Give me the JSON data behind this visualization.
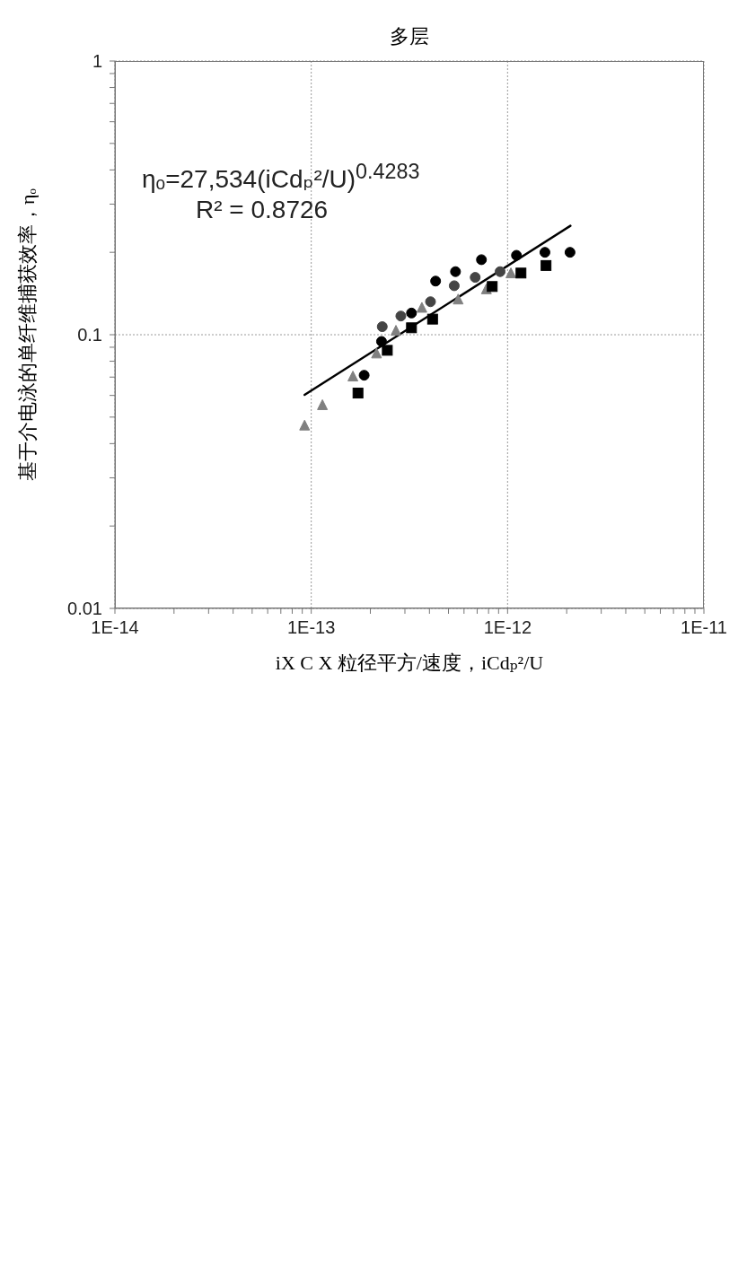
{
  "chart_data": {
    "type": "scatter",
    "title": "多层",
    "xlabel": "iX C X 粒径平方/速度，iCdₚ²/U",
    "ylabel": "基于介电泳的单纤维捕获效率，ηₒ",
    "log": "xy",
    "grid": true,
    "xlim": [
      1e-14,
      1e-11
    ],
    "xticks": [
      {
        "value": 1e-14,
        "label": "1E-14"
      },
      {
        "value": 2e-14,
        "label": null
      },
      {
        "value": 3e-14,
        "label": null
      },
      {
        "value": 4e-14,
        "label": null
      },
      {
        "value": 5e-14,
        "label": null
      },
      {
        "value": 6e-14,
        "label": null
      },
      {
        "value": 7e-14,
        "label": null
      },
      {
        "value": 8e-14,
        "label": null
      },
      {
        "value": 9e-14,
        "label": null
      },
      {
        "value": 1e-13,
        "label": "1E-13"
      },
      {
        "value": 2e-13,
        "label": null
      },
      {
        "value": 3e-13,
        "label": null
      },
      {
        "value": 4e-13,
        "label": null
      },
      {
        "value": 5e-13,
        "label": null
      },
      {
        "value": 6e-13,
        "label": null
      },
      {
        "value": 7e-13,
        "label": null
      },
      {
        "value": 8e-13,
        "label": null
      },
      {
        "value": 9e-13,
        "label": null
      },
      {
        "value": 1e-12,
        "label": "1E-12"
      },
      {
        "value": 2e-12,
        "label": null
      },
      {
        "value": 3e-12,
        "label": null
      },
      {
        "value": 4e-12,
        "label": null
      },
      {
        "value": 5e-12,
        "label": null
      },
      {
        "value": 6e-12,
        "label": null
      },
      {
        "value": 7e-12,
        "label": null
      },
      {
        "value": 8e-12,
        "label": null
      },
      {
        "value": 9e-12,
        "label": null
      },
      {
        "value": 1e-11,
        "label": "1E-11"
      }
    ],
    "ylim": [
      0.01,
      1
    ],
    "yticks": [
      0.01,
      {
        "value": 0.02,
        "label": null
      },
      {
        "value": 0.03,
        "label": null
      },
      {
        "value": 0.04,
        "label": null
      },
      {
        "value": 0.05,
        "label": null
      },
      {
        "value": 0.06,
        "label": null
      },
      {
        "value": 0.07,
        "label": null
      },
      {
        "value": 0.08,
        "label": null
      },
      {
        "value": 0.09,
        "label": null
      },
      0.1,
      {
        "value": 0.2,
        "label": null
      },
      {
        "value": 0.3,
        "label": null
      },
      {
        "value": 0.4,
        "label": null
      },
      {
        "value": 0.5,
        "label": null
      },
      {
        "value": 0.6,
        "label": null
      },
      {
        "value": 0.7,
        "label": null
      },
      {
        "value": 0.8,
        "label": null
      },
      {
        "value": 0.9,
        "label": null
      },
      1
    ],
    "annotations": [
      "ηₒ=27,534(iCdₚ²/U)$^{0.4283}$",
      "R² = 0.8726"
    ],
    "series": [
      {
        "marker": "circle",
        "color": "#000000",
        "x": [
          2.08e-12,
          1.55e-12,
          1.11e-12,
          7.36e-13,
          5.43e-13,
          4.3e-13,
          3.24e-13,
          2.28e-13,
          1.86e-13
        ],
        "values": [
          0.2,
          0.2,
          0.195,
          0.188,
          0.17,
          0.157,
          0.12,
          0.0945,
          0.0711
        ]
      },
      {
        "marker": "circle",
        "color": "#444444",
        "x": [
          9.16e-13,
          6.84e-13,
          5.35e-13,
          4.05e-13,
          2.86e-13,
          2.3e-13
        ],
        "values": [
          0.17,
          0.162,
          0.151,
          0.132,
          0.117,
          0.107
        ]
      },
      {
        "marker": "triangle",
        "color": "#808080",
        "x": [
          1.04e-12,
          7.8e-13,
          5.6e-13,
          3.66e-13,
          2.7e-13,
          2.15e-13,
          1.63e-13,
          1.14e-13,
          9.25e-14
        ],
        "values": [
          0.167,
          0.146,
          0.134,
          0.125,
          0.103,
          0.0851,
          0.0701,
          0.0551,
          0.0464
        ]
      },
      {
        "marker": "square",
        "color": "#000000",
        "x": [
          1.57e-12,
          1.17e-12,
          8.35e-13,
          4.15e-13,
          3.24e-13,
          2.44e-13,
          1.73e-13
        ],
        "values": [
          0.179,
          0.168,
          0.15,
          0.114,
          0.106,
          0.0877,
          0.0612
        ]
      },
      {
        "type": "line",
        "color": "#000000",
        "x": [
          9.25e-14,
          2.09e-12
        ],
        "values": [
          0.0603,
          0.25
        ]
      }
    ]
  }
}
